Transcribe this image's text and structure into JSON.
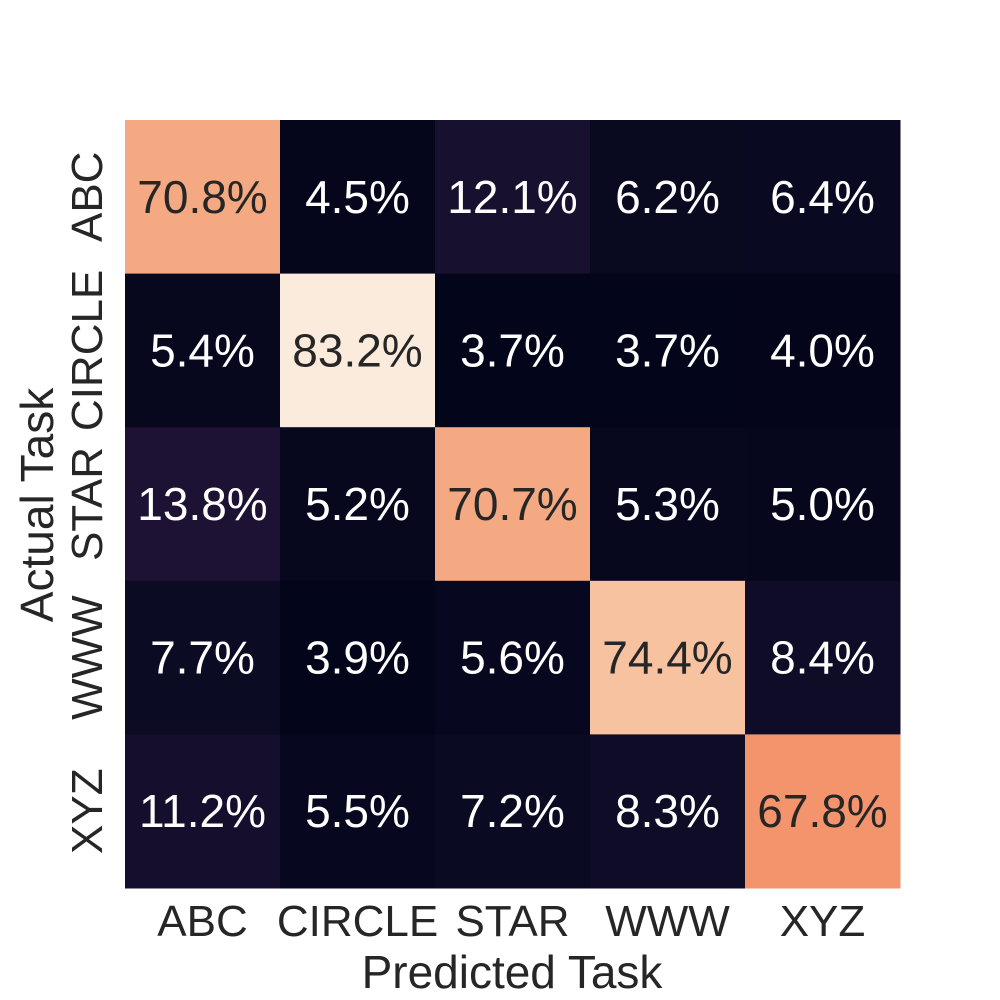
{
  "chart_data": {
    "type": "heatmap",
    "xlabel": "Predicted Task",
    "ylabel": "Actual Task",
    "x_categories": [
      "ABC",
      "CIRCLE",
      "STAR",
      "WWW",
      "XYZ"
    ],
    "y_categories": [
      "ABC",
      "CIRCLE",
      "STAR",
      "WWW",
      "XYZ"
    ],
    "values": [
      [
        70.8,
        4.5,
        12.1,
        6.2,
        6.4
      ],
      [
        5.4,
        83.2,
        3.7,
        3.7,
        4.0
      ],
      [
        13.8,
        5.2,
        70.7,
        5.3,
        5.0
      ],
      [
        7.7,
        3.9,
        5.6,
        74.4,
        8.4
      ],
      [
        11.2,
        5.5,
        7.2,
        8.3,
        67.8
      ]
    ],
    "value_format": "percent_1dp",
    "colorbar": false,
    "colormap": "rocket"
  }
}
